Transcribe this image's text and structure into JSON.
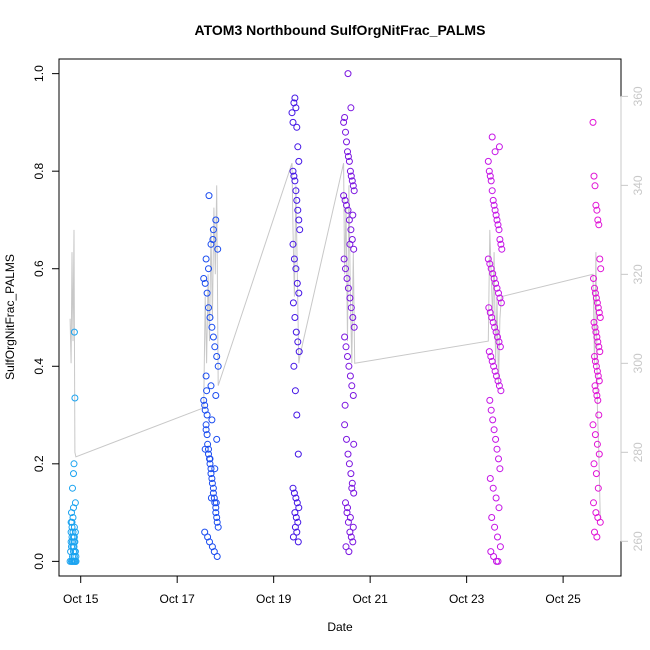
{
  "chart_data": {
    "type": "scatter",
    "title": "ATOM3 Northbound SulfOrgNitFrac_PALMS",
    "xlabel": "Date",
    "ylabel": "SulfOrgNitFrac_PALMS",
    "xlim": [
      14.55,
      26.2
    ],
    "ylim": [
      -0.03,
      1.03
    ],
    "y2lim": [
      252.2,
      368.4
    ],
    "x_ticks": [
      {
        "value": 15,
        "label": "Oct 15"
      },
      {
        "value": 17,
        "label": "Oct 17"
      },
      {
        "value": 19,
        "label": "Oct 19"
      },
      {
        "value": 21,
        "label": "Oct 21"
      },
      {
        "value": 23,
        "label": "Oct 23"
      },
      {
        "value": 25,
        "label": "Oct 25"
      }
    ],
    "y_ticks": [
      {
        "value": 0.0,
        "label": "0.0"
      },
      {
        "value": 0.2,
        "label": "0.2"
      },
      {
        "value": 0.4,
        "label": "0.4"
      },
      {
        "value": 0.6,
        "label": "0.6"
      },
      {
        "value": 0.8,
        "label": "0.8"
      },
      {
        "value": 1.0,
        "label": "1.0"
      }
    ],
    "y2_ticks": [
      {
        "value": 260,
        "label": "260"
      },
      {
        "value": 280,
        "label": "280"
      },
      {
        "value": 300,
        "label": "300"
      },
      {
        "value": 320,
        "label": "320"
      },
      {
        "value": 340,
        "label": "340"
      },
      {
        "value": 360,
        "label": "360"
      }
    ],
    "colors": {
      "secondary_line": "#c8c8c8",
      "axis": "#000000",
      "right_axis": "#c8c8c8",
      "groups": [
        "#1aa3f0",
        "#1a4cf0",
        "#4415e6",
        "#7a14e0",
        "#c514e6",
        "#e014d6"
      ]
    },
    "series": [
      {
        "marker": "open-circle",
        "color": "#1aa3f0",
        "x": [
          14.78,
          14.79,
          14.8,
          14.8,
          14.81,
          14.81,
          14.82,
          14.82,
          14.83,
          14.83,
          14.84,
          14.84,
          14.85,
          14.85,
          14.86,
          14.86,
          14.87,
          14.87,
          14.88,
          14.88,
          14.89,
          14.89,
          14.9,
          14.9,
          14.8,
          14.82,
          14.84,
          14.86,
          14.88,
          14.9,
          14.87,
          14.88,
          14.86,
          14.85,
          14.83,
          14.89,
          14.81,
          14.84,
          14.82,
          14.85,
          14.87,
          14.86
        ],
        "y": [
          0.0,
          0.02,
          0.04,
          0.06,
          0.0,
          0.03,
          0.05,
          0.07,
          0.01,
          0.04,
          0.0,
          0.06,
          0.02,
          0.05,
          0.0,
          0.03,
          0.07,
          0.01,
          0.0,
          0.04,
          0.02,
          0.06,
          0.0,
          0.01,
          0.08,
          0.0,
          0.03,
          0.01,
          0.02,
          0.0,
          0.47,
          0.335,
          0.2,
          0.18,
          0.15,
          0.12,
          0.1,
          0.09,
          0.08,
          0.11,
          0.05,
          0.04
        ]
      },
      {
        "marker": "open-circle",
        "color": "#1a4cf0",
        "x": [
          17.55,
          17.57,
          17.58,
          17.6,
          17.6,
          17.62,
          17.63,
          17.65,
          17.65,
          17.67,
          17.68,
          17.7,
          17.7,
          17.72,
          17.73,
          17.75,
          17.75,
          17.77,
          17.78,
          17.8,
          17.8,
          17.82,
          17.83,
          17.85,
          17.55,
          17.58,
          17.62,
          17.65,
          17.68,
          17.72,
          17.75,
          17.78,
          17.82,
          17.85,
          17.6,
          17.65,
          17.7,
          17.75,
          17.8,
          17.57,
          17.63,
          17.67,
          17.73,
          17.77,
          17.83,
          17.6,
          17.7,
          17.8,
          17.62,
          17.72,
          17.82,
          17.58,
          17.68,
          17.78,
          17.66,
          17.74,
          17.84,
          17.61,
          17.71,
          17.81
        ],
        "y": [
          0.33,
          0.32,
          0.31,
          0.28,
          0.27,
          0.26,
          0.24,
          0.23,
          0.22,
          0.21,
          0.2,
          0.19,
          0.18,
          0.17,
          0.16,
          0.15,
          0.14,
          0.13,
          0.12,
          0.11,
          0.1,
          0.09,
          0.08,
          0.07,
          0.58,
          0.57,
          0.55,
          0.52,
          0.5,
          0.48,
          0.46,
          0.44,
          0.42,
          0.4,
          0.62,
          0.6,
          0.65,
          0.68,
          0.7,
          0.06,
          0.05,
          0.04,
          0.03,
          0.02,
          0.01,
          0.38,
          0.36,
          0.34,
          0.3,
          0.29,
          0.25,
          0.23,
          0.21,
          0.19,
          0.75,
          0.66,
          0.64,
          0.35,
          0.13,
          0.12
        ]
      },
      {
        "marker": "open-circle",
        "color": "#4415e6",
        "x": [
          19.38,
          19.4,
          19.42,
          19.44,
          19.46,
          19.48,
          19.5,
          19.52,
          19.4,
          19.42,
          19.44,
          19.46,
          19.48,
          19.5,
          19.52,
          19.54,
          19.4,
          19.43,
          19.46,
          19.49,
          19.52,
          19.41,
          19.44,
          19.47,
          19.5,
          19.53,
          19.42,
          19.45,
          19.48,
          19.51,
          19.4,
          19.43,
          19.46,
          19.49,
          19.52,
          19.44,
          19.47,
          19.5,
          19.45,
          19.48,
          19.41,
          19.51
        ],
        "y": [
          0.92,
          0.9,
          0.94,
          0.95,
          0.93,
          0.89,
          0.85,
          0.82,
          0.8,
          0.79,
          0.78,
          0.76,
          0.74,
          0.72,
          0.7,
          0.68,
          0.65,
          0.62,
          0.6,
          0.57,
          0.55,
          0.53,
          0.5,
          0.47,
          0.45,
          0.43,
          0.4,
          0.35,
          0.3,
          0.22,
          0.15,
          0.14,
          0.13,
          0.12,
          0.11,
          0.1,
          0.09,
          0.08,
          0.07,
          0.06,
          0.05,
          0.04
        ]
      },
      {
        "marker": "open-circle",
        "color": "#7a14e0",
        "x": [
          20.45,
          20.47,
          20.49,
          20.51,
          20.53,
          20.55,
          20.57,
          20.59,
          20.61,
          20.63,
          20.65,
          20.67,
          20.45,
          20.48,
          20.51,
          20.54,
          20.57,
          20.6,
          20.63,
          20.66,
          20.46,
          20.49,
          20.52,
          20.55,
          20.58,
          20.61,
          20.64,
          20.67,
          20.47,
          20.5,
          20.53,
          20.56,
          20.59,
          20.62,
          20.65,
          20.48,
          20.51,
          20.54,
          20.57,
          20.6,
          20.63,
          20.66,
          20.49,
          20.52,
          20.55,
          20.58,
          20.61,
          20.64,
          20.5,
          20.56,
          20.62,
          20.53,
          20.59,
          20.65,
          20.54,
          20.6,
          20.66,
          20.47,
          20.58,
          20.64
        ],
        "y": [
          0.9,
          0.91,
          0.88,
          0.86,
          0.84,
          0.83,
          0.82,
          0.8,
          0.79,
          0.78,
          0.77,
          0.76,
          0.75,
          0.74,
          0.73,
          0.72,
          0.7,
          0.68,
          0.66,
          0.64,
          0.62,
          0.6,
          0.58,
          0.56,
          0.54,
          0.52,
          0.5,
          0.48,
          0.46,
          0.44,
          0.42,
          0.4,
          0.38,
          0.36,
          0.34,
          0.32,
          0.25,
          0.22,
          0.2,
          0.18,
          0.16,
          0.14,
          0.12,
          0.1,
          0.08,
          0.06,
          0.05,
          0.04,
          0.03,
          0.02,
          0.15,
          0.11,
          0.09,
          0.07,
          1.0,
          0.93,
          0.24,
          0.28,
          0.65,
          0.71
        ]
      },
      {
        "marker": "open-circle",
        "color": "#c514e6",
        "x": [
          23.45,
          23.47,
          23.49,
          23.51,
          23.53,
          23.55,
          23.57,
          23.59,
          23.61,
          23.63,
          23.65,
          23.67,
          23.69,
          23.71,
          23.73,
          23.45,
          23.48,
          23.51,
          23.54,
          23.57,
          23.6,
          23.63,
          23.66,
          23.69,
          23.72,
          23.46,
          23.49,
          23.52,
          23.55,
          23.58,
          23.61,
          23.64,
          23.67,
          23.7,
          23.47,
          23.5,
          23.53,
          23.56,
          23.59,
          23.62,
          23.65,
          23.68,
          23.71,
          23.48,
          23.51,
          23.54,
          23.57,
          23.6,
          23.63,
          23.66,
          23.69,
          23.49,
          23.55,
          23.61,
          23.67,
          23.52,
          23.58,
          23.64,
          23.7,
          23.5,
          23.56,
          23.62,
          23.68,
          23.53,
          23.59,
          23.65
        ],
        "y": [
          0.82,
          0.8,
          0.79,
          0.78,
          0.76,
          0.74,
          0.73,
          0.72,
          0.71,
          0.7,
          0.69,
          0.68,
          0.66,
          0.65,
          0.64,
          0.62,
          0.61,
          0.6,
          0.59,
          0.58,
          0.57,
          0.56,
          0.55,
          0.54,
          0.53,
          0.52,
          0.51,
          0.5,
          0.49,
          0.48,
          0.47,
          0.46,
          0.45,
          0.44,
          0.43,
          0.42,
          0.41,
          0.4,
          0.39,
          0.38,
          0.37,
          0.36,
          0.35,
          0.33,
          0.31,
          0.29,
          0.27,
          0.25,
          0.23,
          0.21,
          0.19,
          0.17,
          0.15,
          0.13,
          0.11,
          0.09,
          0.07,
          0.05,
          0.03,
          0.02,
          0.01,
          0.0,
          0.85,
          0.87,
          0.84,
          0.0
        ]
      },
      {
        "marker": "open-circle",
        "color": "#e014d6",
        "x": [
          25.62,
          25.64,
          25.66,
          25.68,
          25.7,
          25.72,
          25.74,
          25.76,
          25.78,
          25.63,
          25.65,
          25.67,
          25.69,
          25.71,
          25.73,
          25.75,
          25.77,
          25.64,
          25.66,
          25.68,
          25.7,
          25.72,
          25.74,
          25.76,
          25.65,
          25.67,
          25.69,
          25.71,
          25.73,
          25.75,
          25.66,
          25.68,
          25.7,
          25.72,
          25.74,
          25.62,
          25.67,
          25.71,
          25.75,
          25.64,
          25.69,
          25.73,
          25.63,
          25.68,
          25.72,
          25.77,
          25.65,
          25.7
        ],
        "y": [
          0.9,
          0.79,
          0.77,
          0.73,
          0.72,
          0.7,
          0.69,
          0.62,
          0.6,
          0.58,
          0.56,
          0.55,
          0.54,
          0.53,
          0.52,
          0.51,
          0.5,
          0.49,
          0.48,
          0.47,
          0.46,
          0.45,
          0.44,
          0.43,
          0.42,
          0.41,
          0.4,
          0.39,
          0.38,
          0.37,
          0.36,
          0.35,
          0.34,
          0.33,
          0.3,
          0.28,
          0.26,
          0.24,
          0.22,
          0.2,
          0.18,
          0.15,
          0.12,
          0.1,
          0.09,
          0.08,
          0.06,
          0.05
        ]
      }
    ],
    "secondary_line": {
      "axis": "right",
      "color": "#c8c8c8",
      "x": [
        14.78,
        14.8,
        14.82,
        14.84,
        14.86,
        14.88,
        14.9,
        17.55,
        17.58,
        17.61,
        17.64,
        17.67,
        17.7,
        17.73,
        17.76,
        17.79,
        17.82,
        17.85,
        19.38,
        19.4,
        19.43,
        19.46,
        19.49,
        19.52,
        19.55,
        20.45,
        20.47,
        20.5,
        20.53,
        20.56,
        20.59,
        20.62,
        20.65,
        20.68,
        23.45,
        23.48,
        23.51,
        23.54,
        23.57,
        23.6,
        23.63,
        23.66,
        23.69,
        23.72,
        25.62,
        25.65,
        25.68,
        25.71,
        25.74,
        25.77
      ],
      "y": [
        310,
        300,
        325,
        305,
        330,
        280,
        279,
        290,
        315,
        300,
        320,
        305,
        330,
        310,
        335,
        320,
        340,
        295,
        345,
        330,
        315,
        340,
        320,
        300,
        302,
        345,
        320,
        335,
        305,
        340,
        315,
        300,
        325,
        300,
        305,
        330,
        320,
        310,
        325,
        300,
        315,
        295,
        310,
        315,
        320,
        300,
        325,
        290,
        280,
        265
      ]
    }
  }
}
